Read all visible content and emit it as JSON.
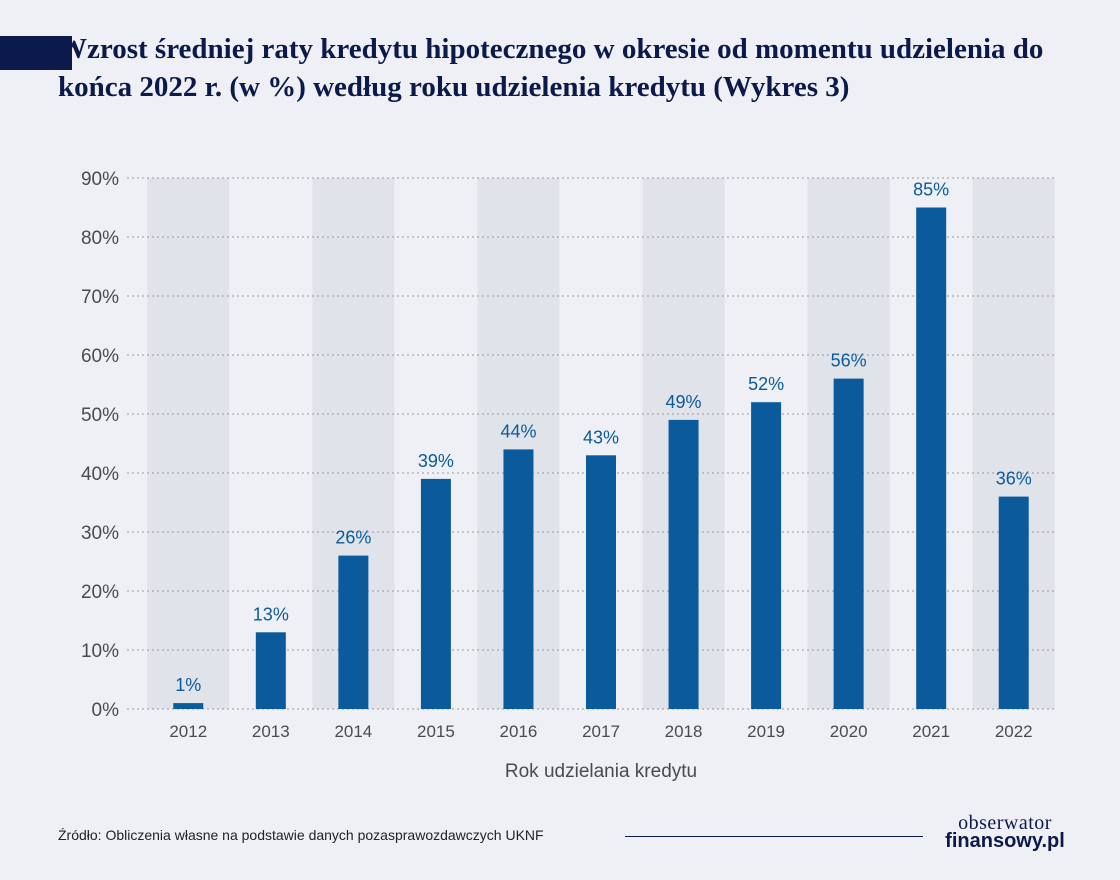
{
  "header": {
    "title": "Wzrost średniej raty kredytu hipotecznego w okresie od momentu udzielenia do końca 2022 r. (w %) według roku udzielenia kredytu (Wykres 3)"
  },
  "chart_data": {
    "type": "bar",
    "title": "Wzrost średniej raty kredytu hipotecznego w okresie od momentu udzielenia do końca 2022 r. (w %) według roku udzielenia kredytu (Wykres 3)",
    "xlabel": "Rok udzielania kredytu",
    "ylabel": "",
    "categories": [
      "2012",
      "2013",
      "2014",
      "2015",
      "2016",
      "2017",
      "2018",
      "2019",
      "2020",
      "2021",
      "2022"
    ],
    "values": [
      1,
      13,
      26,
      39,
      44,
      43,
      49,
      52,
      56,
      85,
      36
    ],
    "data_labels": [
      "1%",
      "13%",
      "26%",
      "39%",
      "44%",
      "43%",
      "49%",
      "52%",
      "56%",
      "85%",
      "36%"
    ],
    "ylim": [
      0,
      90
    ],
    "yticks": [
      0,
      10,
      20,
      30,
      40,
      50,
      60,
      70,
      80,
      90
    ],
    "ytick_labels": [
      "0%",
      "10%",
      "20%",
      "30%",
      "40%",
      "50%",
      "60%",
      "70%",
      "80%",
      "90%"
    ],
    "grid": true,
    "colors": {
      "bar": "#0a5a9c",
      "band": "#e1e3ea",
      "grid": "#9a9a9a",
      "label": "#0a5a9c"
    }
  },
  "footer": {
    "source": "Źródło: Obliczenia własne na podstawie danych pozasprawozdawczych UKNF",
    "logo_top": "obserwator",
    "logo_bottom": "finansowy.pl"
  }
}
